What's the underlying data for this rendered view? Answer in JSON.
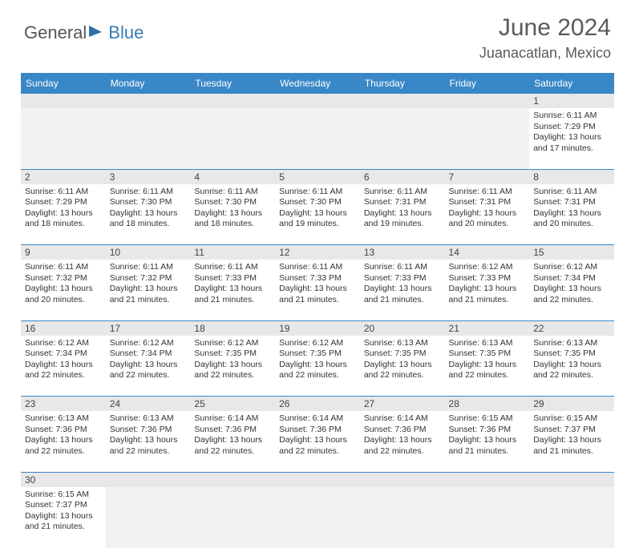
{
  "logo": {
    "part1": "General",
    "part2": "Blue"
  },
  "title": "June 2024",
  "location": "Juanacatlan, Mexico",
  "colors": {
    "header_bg": "#3a87c8",
    "header_text": "#ffffff",
    "daynum_bg": "#e8e8e8",
    "blank_bg": "#f2f2f2",
    "cell_border": "#3a87c8",
    "text": "#333333",
    "logo_gray": "#555555",
    "logo_blue": "#3a7ab8"
  },
  "day_headers": [
    "Sunday",
    "Monday",
    "Tuesday",
    "Wednesday",
    "Thursday",
    "Friday",
    "Saturday"
  ],
  "weeks": [
    [
      null,
      null,
      null,
      null,
      null,
      null,
      {
        "n": "1",
        "sr": "6:11 AM",
        "ss": "7:29 PM",
        "dl1": "13 hours",
        "dl2": "and 17 minutes."
      }
    ],
    [
      {
        "n": "2",
        "sr": "6:11 AM",
        "ss": "7:29 PM",
        "dl1": "13 hours",
        "dl2": "and 18 minutes."
      },
      {
        "n": "3",
        "sr": "6:11 AM",
        "ss": "7:30 PM",
        "dl1": "13 hours",
        "dl2": "and 18 minutes."
      },
      {
        "n": "4",
        "sr": "6:11 AM",
        "ss": "7:30 PM",
        "dl1": "13 hours",
        "dl2": "and 18 minutes."
      },
      {
        "n": "5",
        "sr": "6:11 AM",
        "ss": "7:30 PM",
        "dl1": "13 hours",
        "dl2": "and 19 minutes."
      },
      {
        "n": "6",
        "sr": "6:11 AM",
        "ss": "7:31 PM",
        "dl1": "13 hours",
        "dl2": "and 19 minutes."
      },
      {
        "n": "7",
        "sr": "6:11 AM",
        "ss": "7:31 PM",
        "dl1": "13 hours",
        "dl2": "and 20 minutes."
      },
      {
        "n": "8",
        "sr": "6:11 AM",
        "ss": "7:31 PM",
        "dl1": "13 hours",
        "dl2": "and 20 minutes."
      }
    ],
    [
      {
        "n": "9",
        "sr": "6:11 AM",
        "ss": "7:32 PM",
        "dl1": "13 hours",
        "dl2": "and 20 minutes."
      },
      {
        "n": "10",
        "sr": "6:11 AM",
        "ss": "7:32 PM",
        "dl1": "13 hours",
        "dl2": "and 21 minutes."
      },
      {
        "n": "11",
        "sr": "6:11 AM",
        "ss": "7:33 PM",
        "dl1": "13 hours",
        "dl2": "and 21 minutes."
      },
      {
        "n": "12",
        "sr": "6:11 AM",
        "ss": "7:33 PM",
        "dl1": "13 hours",
        "dl2": "and 21 minutes."
      },
      {
        "n": "13",
        "sr": "6:11 AM",
        "ss": "7:33 PM",
        "dl1": "13 hours",
        "dl2": "and 21 minutes."
      },
      {
        "n": "14",
        "sr": "6:12 AM",
        "ss": "7:33 PM",
        "dl1": "13 hours",
        "dl2": "and 21 minutes."
      },
      {
        "n": "15",
        "sr": "6:12 AM",
        "ss": "7:34 PM",
        "dl1": "13 hours",
        "dl2": "and 22 minutes."
      }
    ],
    [
      {
        "n": "16",
        "sr": "6:12 AM",
        "ss": "7:34 PM",
        "dl1": "13 hours",
        "dl2": "and 22 minutes."
      },
      {
        "n": "17",
        "sr": "6:12 AM",
        "ss": "7:34 PM",
        "dl1": "13 hours",
        "dl2": "and 22 minutes."
      },
      {
        "n": "18",
        "sr": "6:12 AM",
        "ss": "7:35 PM",
        "dl1": "13 hours",
        "dl2": "and 22 minutes."
      },
      {
        "n": "19",
        "sr": "6:12 AM",
        "ss": "7:35 PM",
        "dl1": "13 hours",
        "dl2": "and 22 minutes."
      },
      {
        "n": "20",
        "sr": "6:13 AM",
        "ss": "7:35 PM",
        "dl1": "13 hours",
        "dl2": "and 22 minutes."
      },
      {
        "n": "21",
        "sr": "6:13 AM",
        "ss": "7:35 PM",
        "dl1": "13 hours",
        "dl2": "and 22 minutes."
      },
      {
        "n": "22",
        "sr": "6:13 AM",
        "ss": "7:35 PM",
        "dl1": "13 hours",
        "dl2": "and 22 minutes."
      }
    ],
    [
      {
        "n": "23",
        "sr": "6:13 AM",
        "ss": "7:36 PM",
        "dl1": "13 hours",
        "dl2": "and 22 minutes."
      },
      {
        "n": "24",
        "sr": "6:13 AM",
        "ss": "7:36 PM",
        "dl1": "13 hours",
        "dl2": "and 22 minutes."
      },
      {
        "n": "25",
        "sr": "6:14 AM",
        "ss": "7:36 PM",
        "dl1": "13 hours",
        "dl2": "and 22 minutes."
      },
      {
        "n": "26",
        "sr": "6:14 AM",
        "ss": "7:36 PM",
        "dl1": "13 hours",
        "dl2": "and 22 minutes."
      },
      {
        "n": "27",
        "sr": "6:14 AM",
        "ss": "7:36 PM",
        "dl1": "13 hours",
        "dl2": "and 22 minutes."
      },
      {
        "n": "28",
        "sr": "6:15 AM",
        "ss": "7:36 PM",
        "dl1": "13 hours",
        "dl2": "and 21 minutes."
      },
      {
        "n": "29",
        "sr": "6:15 AM",
        "ss": "7:37 PM",
        "dl1": "13 hours",
        "dl2": "and 21 minutes."
      }
    ],
    [
      {
        "n": "30",
        "sr": "6:15 AM",
        "ss": "7:37 PM",
        "dl1": "13 hours",
        "dl2": "and 21 minutes."
      },
      null,
      null,
      null,
      null,
      null,
      null
    ]
  ],
  "labels": {
    "sunrise_prefix": "Sunrise: ",
    "sunset_prefix": "Sunset: ",
    "daylight_prefix": "Daylight: "
  }
}
